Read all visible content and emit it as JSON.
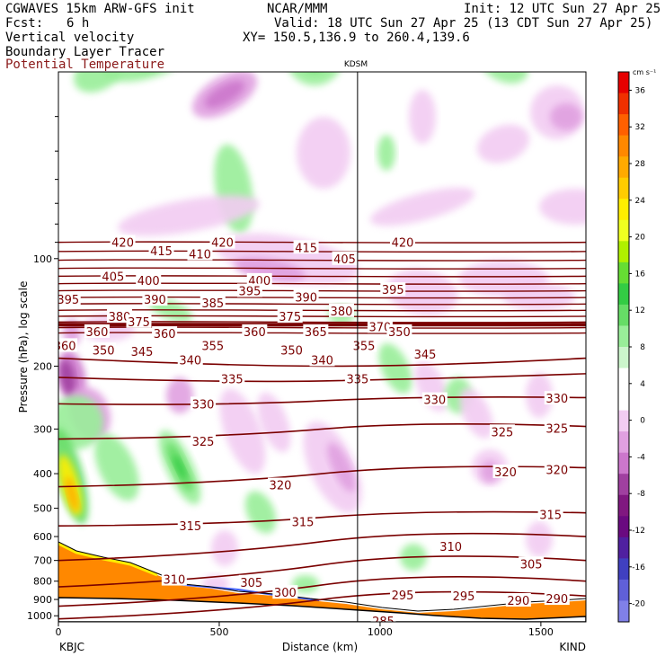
{
  "header": {
    "model": "CGWAVES 15km ARW-GFS init",
    "fcst_label": "Fcst:",
    "fcst_value": "6 h",
    "org": "NCAR/MMM",
    "init": "Init: 12 UTC Sun 27 Apr 25",
    "valid": "Valid: 18 UTC Sun 27 Apr 25 (13 CDT Sun 27 Apr 25)",
    "xy": "XY= 150.5,136.9 to 260.4,139.6",
    "field1": "Vertical velocity",
    "field2": "Boundary Layer Tracer",
    "field3": "Potential Temperature"
  },
  "chart_data": {
    "type": "heatmap",
    "xlabel": "Distance (km)",
    "ylabel": "Pressure (hPa), log scale",
    "xlim": [
      0,
      1640
    ],
    "ylim": [
      1040,
      30
    ],
    "y_scale": "log",
    "x_ticks": [
      0,
      500,
      1000,
      1500
    ],
    "y_ticks": [
      100,
      200,
      300,
      400,
      500,
      600,
      700,
      800,
      900,
      1000
    ],
    "station_left": "KBJC",
    "station_right": "KIND",
    "station_mid": "KDSM",
    "station_mid_x": 930,
    "colorbar": {
      "unit": "cm s⁻¹",
      "levels": [
        36,
        32,
        28,
        24,
        20,
        16,
        12,
        8,
        4,
        0,
        -4,
        -8,
        -12,
        -16,
        -20
      ],
      "colors": [
        "#e60000",
        "#f03000",
        "#ff6000",
        "#ff8800",
        "#ffaa00",
        "#ffcc00",
        "#ffee00",
        "#f0ff20",
        "#b0f000",
        "#66dd33",
        "#33cc44",
        "#66dd66",
        "#99ee99",
        "#ccf5cc",
        "#ffffff",
        "#ffffff",
        "#f2ccf2",
        "#e0a0e0",
        "#cc77cc",
        "#a040a0",
        "#801880",
        "#6a0a80",
        "#5020a0",
        "#4040c0",
        "#6060d8",
        "#8080e8"
      ]
    },
    "theta_contour_labels": [
      {
        "v": "420",
        "x": 200,
        "p": 90
      },
      {
        "v": "415",
        "x": 320,
        "p": 95
      },
      {
        "v": "410",
        "x": 440,
        "p": 97
      },
      {
        "v": "420",
        "x": 510,
        "p": 90
      },
      {
        "v": "415",
        "x": 770,
        "p": 93
      },
      {
        "v": "405",
        "x": 890,
        "p": 100
      },
      {
        "v": "420",
        "x": 1070,
        "p": 90
      },
      {
        "v": "405",
        "x": 170,
        "p": 112
      },
      {
        "v": "400",
        "x": 280,
        "p": 115
      },
      {
        "v": "400",
        "x": 625,
        "p": 115
      },
      {
        "v": "395",
        "x": 30,
        "p": 130
      },
      {
        "v": "390",
        "x": 300,
        "p": 130
      },
      {
        "v": "385",
        "x": 480,
        "p": 133
      },
      {
        "v": "395",
        "x": 595,
        "p": 123
      },
      {
        "v": "390",
        "x": 770,
        "p": 128
      },
      {
        "v": "395",
        "x": 1040,
        "p": 122
      },
      {
        "v": "380",
        "x": 190,
        "p": 145
      },
      {
        "v": "375",
        "x": 250,
        "p": 150
      },
      {
        "v": "375",
        "x": 720,
        "p": 145
      },
      {
        "v": "380",
        "x": 880,
        "p": 140
      },
      {
        "v": "370",
        "x": 1000,
        "p": 155
      },
      {
        "v": "360",
        "x": 120,
        "p": 160
      },
      {
        "v": "360",
        "x": 330,
        "p": 162
      },
      {
        "v": "360",
        "x": 610,
        "p": 160
      },
      {
        "v": "365",
        "x": 800,
        "p": 160
      },
      {
        "v": "350",
        "x": 1060,
        "p": 160
      },
      {
        "v": "360",
        "x": 20,
        "p": 175
      },
      {
        "v": "350",
        "x": 140,
        "p": 180
      },
      {
        "v": "345",
        "x": 260,
        "p": 182
      },
      {
        "v": "355",
        "x": 480,
        "p": 175
      },
      {
        "v": "350",
        "x": 725,
        "p": 180
      },
      {
        "v": "355",
        "x": 950,
        "p": 175
      },
      {
        "v": "340",
        "x": 410,
        "p": 192
      },
      {
        "v": "345",
        "x": 1140,
        "p": 185
      },
      {
        "v": "340",
        "x": 820,
        "p": 192
      },
      {
        "v": "335",
        "x": 540,
        "p": 217
      },
      {
        "v": "335",
        "x": 930,
        "p": 217
      },
      {
        "v": "330",
        "x": 450,
        "p": 255
      },
      {
        "v": "330",
        "x": 1170,
        "p": 248
      },
      {
        "v": "330",
        "x": 1550,
        "p": 246
      },
      {
        "v": "325",
        "x": 450,
        "p": 325
      },
      {
        "v": "325",
        "x": 1380,
        "p": 305
      },
      {
        "v": "325",
        "x": 1550,
        "p": 298
      },
      {
        "v": "320",
        "x": 690,
        "p": 430
      },
      {
        "v": "320",
        "x": 1390,
        "p": 395
      },
      {
        "v": "320",
        "x": 1550,
        "p": 390
      },
      {
        "v": "315",
        "x": 410,
        "p": 560
      },
      {
        "v": "315",
        "x": 760,
        "p": 545
      },
      {
        "v": "315",
        "x": 1530,
        "p": 520
      },
      {
        "v": "310",
        "x": 1220,
        "p": 640
      },
      {
        "v": "305",
        "x": 1470,
        "p": 715
      },
      {
        "v": "310",
        "x": 360,
        "p": 790
      },
      {
        "v": "305",
        "x": 600,
        "p": 805
      },
      {
        "v": "300",
        "x": 705,
        "p": 860
      },
      {
        "v": "295",
        "x": 1070,
        "p": 875
      },
      {
        "v": "295",
        "x": 1260,
        "p": 880
      },
      {
        "v": "290",
        "x": 1430,
        "p": 905
      },
      {
        "v": "290",
        "x": 1550,
        "p": 895
      },
      {
        "v": "285",
        "x": 1010,
        "p": 1035
      }
    ]
  }
}
